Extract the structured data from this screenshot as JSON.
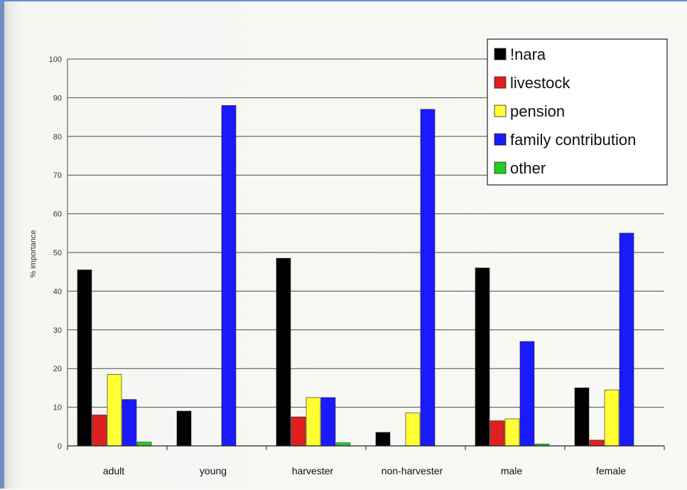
{
  "chart_data": {
    "type": "bar",
    "title": "",
    "xlabel": "",
    "ylabel": "% importance",
    "ylim": [
      0,
      100
    ],
    "yticks": [
      0,
      10,
      20,
      30,
      40,
      50,
      60,
      70,
      80,
      90,
      100
    ],
    "grid": true,
    "legend_position": "top-right",
    "categories": [
      "adult",
      "young",
      "harvester",
      "non-harvester",
      "male",
      "female"
    ],
    "series": [
      {
        "name": "!nara",
        "color": "#000000",
        "values": [
          45.5,
          9,
          48.5,
          3.5,
          46,
          15
        ]
      },
      {
        "name": "livestock",
        "color": "#e02020",
        "values": [
          8,
          0,
          7.5,
          0,
          6.5,
          1.5
        ]
      },
      {
        "name": "pension",
        "color": "#ffff33",
        "values": [
          18.5,
          0,
          12.5,
          8.5,
          7,
          14.5
        ]
      },
      {
        "name": "family contribution",
        "color": "#1a1aff",
        "values": [
          12,
          88,
          12.5,
          87,
          27,
          55
        ]
      },
      {
        "name": "other",
        "color": "#22cc22",
        "values": [
          1,
          0,
          0.8,
          0,
          0.5,
          0
        ]
      }
    ]
  }
}
